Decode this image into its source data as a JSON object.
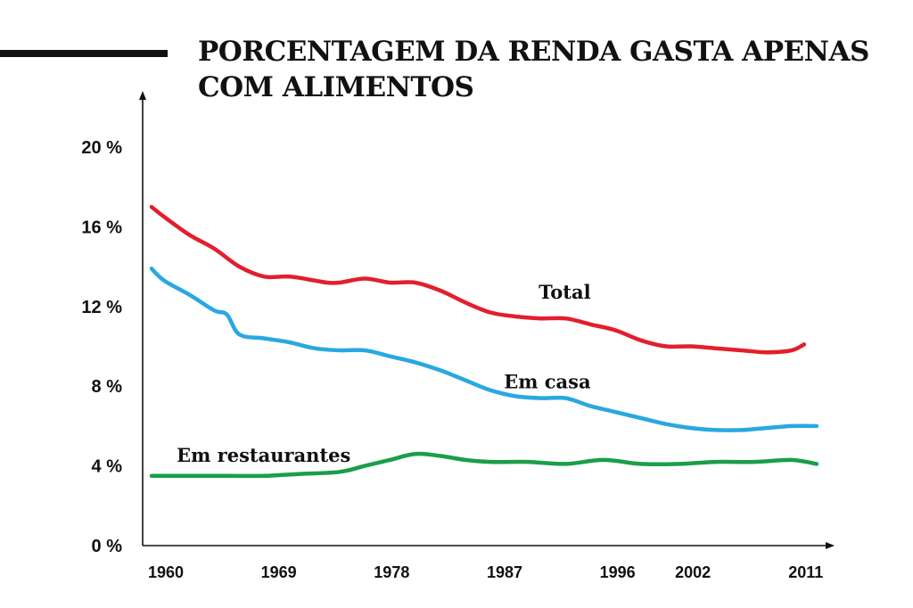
{
  "header": {
    "title_line1": "PORCENTAGEM DA RENDA GASTA APENAS",
    "title_line2": "COM ALIMENTOS"
  },
  "chart_data": {
    "type": "line",
    "title": "PORCENTAGEM DA RENDA GASTA APENAS COM ALIMENTOS",
    "xlabel": "",
    "ylabel": "",
    "ylim": [
      0,
      20
    ],
    "xlim": [
      1960,
      2014
    ],
    "y_ticks": [
      0,
      4,
      8,
      12,
      16,
      20
    ],
    "y_tick_labels": [
      "0 %",
      "4 %",
      "8 %",
      "12 %",
      "16 %",
      "20 %"
    ],
    "x_ticks": [
      1960,
      1969,
      1978,
      1987,
      1996,
      2002,
      2011
    ],
    "x_tick_labels": [
      "1960",
      "1969",
      "1978",
      "1987",
      "1996",
      "2002",
      "2011"
    ],
    "grid": false,
    "legend": "labels placed next to each line",
    "series": [
      {
        "name": "Total",
        "color": "#e31e2d",
        "x": [
          1960,
          1961,
          1963,
          1965,
          1967,
          1969,
          1971,
          1973,
          1974,
          1975,
          1977,
          1979,
          1981,
          1983,
          1985,
          1987,
          1989,
          1991,
          1993,
          1995,
          1997,
          1999,
          2001,
          2003,
          2005,
          2007,
          2009,
          2011,
          2012
        ],
        "values": [
          17.0,
          16.5,
          15.6,
          14.9,
          14.0,
          13.5,
          13.5,
          13.3,
          13.2,
          13.2,
          13.4,
          13.2,
          13.2,
          12.8,
          12.2,
          11.7,
          11.5,
          11.4,
          11.4,
          11.1,
          10.8,
          10.3,
          10.0,
          10.0,
          9.9,
          9.8,
          9.7,
          9.8,
          10.1
        ]
      },
      {
        "name": "Em casa",
        "color": "#29a8e0",
        "x": [
          1960,
          1961,
          1963,
          1965,
          1966,
          1967,
          1969,
          1971,
          1973,
          1975,
          1977,
          1979,
          1981,
          1983,
          1985,
          1987,
          1989,
          1991,
          1993,
          1995,
          1997,
          1999,
          2001,
          2003,
          2005,
          2007,
          2009,
          2011,
          2013
        ],
        "values": [
          13.9,
          13.3,
          12.6,
          11.8,
          11.6,
          10.6,
          10.4,
          10.2,
          9.9,
          9.8,
          9.8,
          9.5,
          9.2,
          8.8,
          8.3,
          7.8,
          7.5,
          7.4,
          7.4,
          7.0,
          6.7,
          6.4,
          6.1,
          5.9,
          5.8,
          5.8,
          5.9,
          6.0,
          6.0
        ]
      },
      {
        "name": "Em restaurantes",
        "color": "#1a9e4a",
        "x": [
          1960,
          1963,
          1966,
          1969,
          1972,
          1975,
          1977,
          1979,
          1981,
          1983,
          1985,
          1987,
          1990,
          1993,
          1996,
          1999,
          2002,
          2005,
          2008,
          2011,
          2013
        ],
        "values": [
          3.5,
          3.5,
          3.5,
          3.5,
          3.6,
          3.7,
          4.0,
          4.3,
          4.6,
          4.5,
          4.3,
          4.2,
          4.2,
          4.1,
          4.3,
          4.1,
          4.1,
          4.2,
          4.2,
          4.3,
          4.1
        ]
      }
    ]
  }
}
